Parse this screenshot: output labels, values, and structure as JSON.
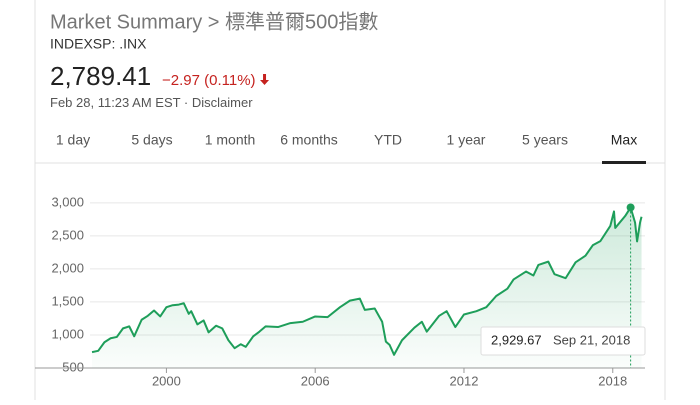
{
  "header": {
    "title": "Market Summary > 標準普爾500指數",
    "ticker": "INDEXSP: .INX",
    "price": "2,789.41",
    "change": "−2.97 (0.11%)",
    "timestamp": "Feb 28, 11:23 AM EST ·",
    "disclaimer": "Disclaimer"
  },
  "tabs": {
    "items": [
      "1 day",
      "5 days",
      "1 month",
      "6 months",
      "YTD",
      "1 year",
      "5 years",
      "Max"
    ],
    "selected": 7
  },
  "chart_data": {
    "type": "line",
    "x": [
      1997.0,
      1997.25,
      1997.5,
      1997.75,
      1998.0,
      1998.25,
      1998.5,
      1998.7,
      1999.0,
      1999.25,
      1999.5,
      1999.75,
      2000.0,
      2000.25,
      2000.5,
      2000.7,
      2000.9,
      2001.0,
      2001.25,
      2001.5,
      2001.7,
      2002.0,
      2002.25,
      2002.5,
      2002.75,
      2003.0,
      2003.2,
      2003.5,
      2003.75,
      2004.0,
      2004.5,
      2005.0,
      2005.5,
      2006.0,
      2006.5,
      2007.0,
      2007.4,
      2007.8,
      2008.0,
      2008.4,
      2008.7,
      2008.85,
      2009.0,
      2009.18,
      2009.5,
      2010.0,
      2010.3,
      2010.5,
      2011.0,
      2011.3,
      2011.65,
      2012.0,
      2012.5,
      2012.9,
      2013.3,
      2013.75,
      2014.0,
      2014.5,
      2014.8,
      2015.0,
      2015.4,
      2015.65,
      2016.1,
      2016.5,
      2016.9,
      2017.2,
      2017.5,
      2017.9,
      2018.05,
      2018.1,
      2018.5,
      2018.72,
      2018.9,
      2018.98,
      2019.1,
      2019.16
    ],
    "series": [
      {
        "name": "S&P 500",
        "color": "#1e9e5a",
        "values": [
          740,
          760,
          890,
          950,
          970,
          1100,
          1130,
          980,
          1230,
          1290,
          1370,
          1280,
          1420,
          1450,
          1460,
          1480,
          1320,
          1360,
          1160,
          1220,
          1040,
          1140,
          1100,
          920,
          800,
          860,
          820,
          980,
          1050,
          1130,
          1120,
          1180,
          1200,
          1280,
          1270,
          1420,
          1520,
          1550,
          1380,
          1400,
          1200,
          900,
          850,
          700,
          920,
          1110,
          1200,
          1050,
          1290,
          1360,
          1120,
          1310,
          1360,
          1420,
          1590,
          1700,
          1840,
          1960,
          1900,
          2060,
          2110,
          1920,
          1860,
          2100,
          2200,
          2360,
          2420,
          2650,
          2870,
          2620,
          2800,
          2929.67,
          2700,
          2416,
          2700,
          2789.41
        ]
      }
    ],
    "xlim": [
      1994.7,
      2019.3
    ],
    "xticks": [
      2000,
      2006,
      2012,
      2018
    ],
    "ylim": [
      500,
      3300
    ],
    "yticks": [
      500,
      {
        "value": 1000,
        "label": "1,000"
      },
      {
        "value": 1500,
        "label": "1,500"
      },
      {
        "value": 2000,
        "label": "2,000"
      },
      {
        "value": 2500,
        "label": "2,500"
      },
      {
        "value": 3000,
        "label": "3,000"
      }
    ],
    "grid": true,
    "highlight": {
      "x": 2018.72,
      "value": 2929.67,
      "value_label": "2,929.67",
      "date": "Sep 21, 2018"
    }
  }
}
